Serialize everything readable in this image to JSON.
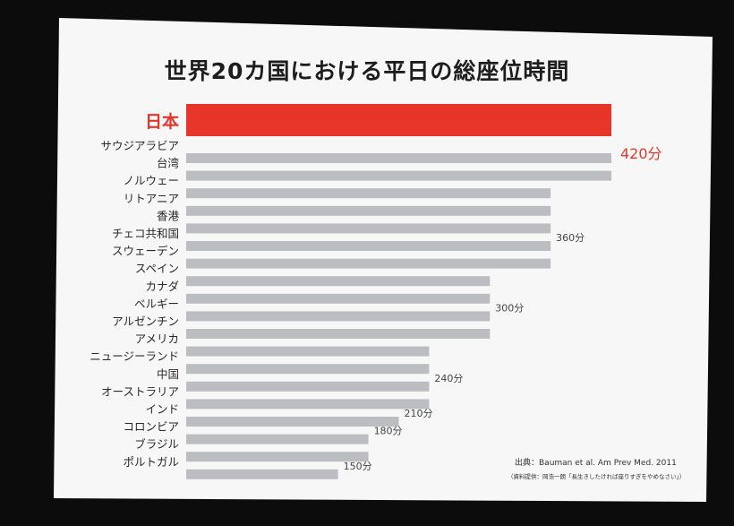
{
  "title": "世界20カ国における平日の総座位時間",
  "source": "出典：Bauman et al. Am Prev Med. 2011",
  "source_note": "（資料提供：岡浩一朗「長生きしたければ座りすぎをやめなさい」）",
  "colors": {
    "screen_bg": "#f7f7f7",
    "highlight": "#e8352a",
    "bar": "#bcbdc1",
    "label": "#2a2a2a",
    "value_label": "#444444",
    "highlight_label": "#e8352a"
  },
  "chart_data": {
    "type": "bar",
    "orientation": "horizontal",
    "title": "世界20カ国における平日の総座位時間",
    "unit": "分",
    "categories": [
      "日本",
      "サウジアラビア",
      "台湾",
      "ノルウェー",
      "リトアニア",
      "香港",
      "チェコ共和国",
      "スウェーデン",
      "スペイン",
      "カナダ",
      "ベルギー",
      "アルゼンチン",
      "アメリカ",
      "ニュージーランド",
      "中国",
      "オーストラリア",
      "インド",
      "コロンビア",
      "ブラジル",
      "ポルトガル"
    ],
    "values": [
      420,
      420,
      420,
      360,
      360,
      360,
      360,
      360,
      300,
      300,
      300,
      300,
      240,
      240,
      240,
      240,
      210,
      180,
      180,
      150
    ],
    "highlight_index": 0,
    "data_labels": [
      {
        "index": 1,
        "text": "420分",
        "highlight": true
      },
      {
        "index": 6,
        "text": "360分"
      },
      {
        "index": 10,
        "text": "300分"
      },
      {
        "index": 14,
        "text": "240分"
      },
      {
        "index": 16,
        "text": "210分"
      },
      {
        "index": 17,
        "text": "180分"
      },
      {
        "index": 19,
        "text": "150分"
      }
    ]
  }
}
